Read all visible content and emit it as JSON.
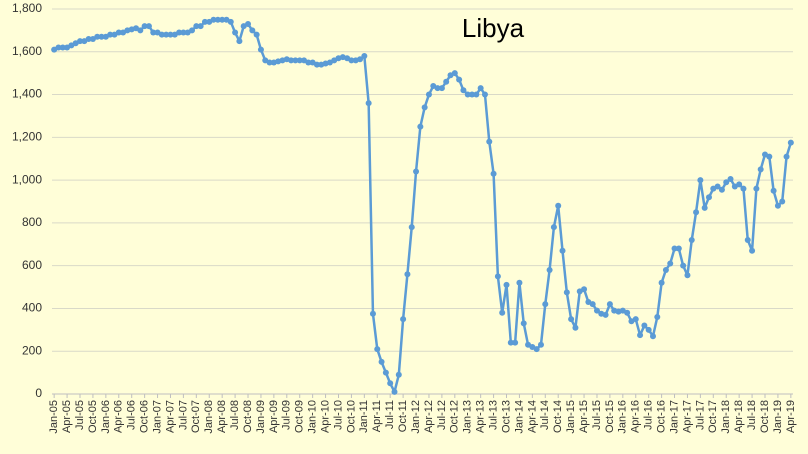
{
  "chart_data": {
    "type": "line",
    "title": "Libya",
    "categories": [
      "Jan-05",
      null,
      null,
      "Apr-05",
      null,
      null,
      "Jul-05",
      null,
      null,
      "Oct-05",
      null,
      null,
      "Jan-06",
      null,
      null,
      "Apr-06",
      null,
      null,
      "Jul-06",
      null,
      null,
      "Oct-06",
      null,
      null,
      "Jan-07",
      null,
      null,
      "Apr-07",
      null,
      null,
      "Jul-07",
      null,
      null,
      "Oct-07",
      null,
      null,
      "Jan-08",
      null,
      null,
      "Apr-08",
      null,
      null,
      "Jul-08",
      null,
      null,
      "Oct-08",
      null,
      null,
      "Jan-09",
      null,
      null,
      "Apr-09",
      null,
      null,
      "Jul-09",
      null,
      null,
      "Oct-09",
      null,
      null,
      "Jan-10",
      null,
      null,
      "Apr-10",
      null,
      null,
      "Jul-10",
      null,
      null,
      "Oct-10",
      null,
      null,
      "Jan-11",
      null,
      null,
      "Apr-11",
      null,
      null,
      "Jul-11",
      null,
      null,
      "Oct-11",
      null,
      null,
      "Jan-12",
      null,
      null,
      "Apr-12",
      null,
      null,
      "Jul-12",
      null,
      null,
      "Oct-12",
      null,
      null,
      "Jan-13",
      null,
      null,
      "Apr-13",
      null,
      null,
      "Jul-13",
      null,
      null,
      "Oct-13",
      null,
      null,
      "Jan-14",
      null,
      null,
      "Apr-14",
      null,
      null,
      "Jul-14",
      null,
      null,
      "Oct-14",
      null,
      null,
      "Jan-15",
      null,
      null,
      "Apr-15",
      null,
      null,
      "Jul-15",
      null,
      null,
      "Oct-15",
      null,
      null,
      "Jan-16",
      null,
      null,
      "Apr-16",
      null,
      null,
      "Jul-16",
      null,
      null,
      "Oct-16",
      null,
      null,
      "Jan-17",
      null,
      null,
      "Apr-17",
      null,
      null,
      "Jul-17",
      null,
      null,
      "Oct-17",
      null,
      null,
      "Jan-18",
      null,
      null,
      "Apr-18",
      null,
      null,
      "Jul-18",
      null,
      null,
      "Oct-18",
      null,
      null,
      "Jan-19",
      null,
      null,
      "Apr-19"
    ],
    "values": [
      1610,
      1620,
      1620,
      1620,
      1630,
      1640,
      1650,
      1650,
      1660,
      1660,
      1670,
      1670,
      1670,
      1680,
      1680,
      1690,
      1690,
      1700,
      1705,
      1710,
      1700,
      1720,
      1720,
      1690,
      1690,
      1680,
      1680,
      1680,
      1680,
      1690,
      1690,
      1690,
      1700,
      1720,
      1720,
      1740,
      1740,
      1750,
      1750,
      1750,
      1750,
      1740,
      1690,
      1650,
      1720,
      1730,
      1700,
      1680,
      1610,
      1560,
      1550,
      1550,
      1555,
      1560,
      1565,
      1560,
      1560,
      1560,
      1560,
      1550,
      1550,
      1540,
      1540,
      1545,
      1550,
      1560,
      1570,
      1575,
      1570,
      1560,
      1560,
      1565,
      1580,
      1360,
      375,
      210,
      150,
      100,
      50,
      10,
      90,
      350,
      560,
      780,
      1040,
      1250,
      1340,
      1400,
      1440,
      1430,
      1430,
      1460,
      1490,
      1500,
      1470,
      1420,
      1400,
      1400,
      1400,
      1430,
      1400,
      1180,
      1030,
      550,
      380,
      510,
      240,
      240,
      520,
      330,
      230,
      220,
      210,
      230,
      420,
      580,
      780,
      880,
      670,
      475,
      350,
      310,
      480,
      490,
      430,
      420,
      390,
      375,
      370,
      420,
      390,
      385,
      390,
      380,
      340,
      350,
      275,
      320,
      300,
      270,
      360,
      520,
      580,
      610,
      680,
      680,
      600,
      555,
      720,
      850,
      1000,
      870,
      920,
      960,
      970,
      955,
      990,
      1005,
      970,
      980,
      960,
      720,
      670,
      960,
      1050,
      1120,
      1110,
      950,
      880,
      900,
      1110,
      1175
    ],
    "color": "#5b9bd5",
    "ylim": [
      0,
      1800
    ],
    "yticks": [
      0,
      200,
      400,
      600,
      800,
      {
        "value": 1000,
        "label": "1,000"
      },
      {
        "value": 1200,
        "label": "1,200"
      },
      {
        "value": 1400,
        "label": "1,400"
      },
      {
        "value": 1600,
        "label": "1,600"
      },
      {
        "value": 1800,
        "label": "1,800"
      }
    ],
    "grid": true
  }
}
